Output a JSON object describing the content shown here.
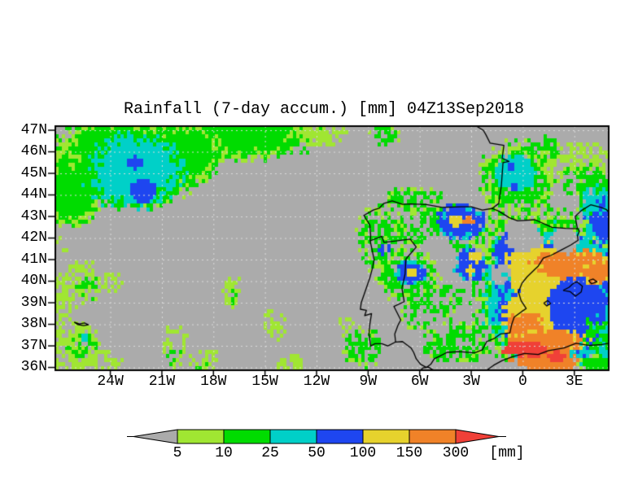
{
  "title": "Rainfall (7-day accum.) [mm] 04Z13Sep2018",
  "chart_data": {
    "type": "heatmap",
    "title": "Rainfall (7-day accum.) [mm] 04Z13Sep2018",
    "variable": "7-day accumulated rainfall",
    "unit": "mm",
    "valid_time": "04Z13Sep2018",
    "projection": {
      "lon_range": [
        -27.2,
        5.0
      ],
      "lat_range": [
        35.87,
        47.19
      ]
    },
    "x_axis": {
      "tick_labels": [
        "24W",
        "21W",
        "18W",
        "15W",
        "12W",
        "9W",
        "6W",
        "3W",
        "0",
        "3E"
      ],
      "tick_lons": [
        -24,
        -21,
        -18,
        -15,
        -12,
        -9,
        -6,
        -3,
        0,
        3
      ]
    },
    "y_axis": {
      "tick_labels": [
        "47N",
        "46N",
        "45N",
        "44N",
        "43N",
        "42N",
        "41N",
        "40N",
        "39N",
        "38N",
        "37N",
        "36N"
      ],
      "tick_lats": [
        47,
        46,
        45,
        44,
        43,
        42,
        41,
        40,
        39,
        38,
        37,
        36
      ]
    },
    "grid": {
      "lat_step_deg": 1,
      "lon_step_deg": 3,
      "style": "dotted",
      "color": "#dcdcdc"
    },
    "frame_color": "#000000",
    "coast_color": "#000000",
    "levels": [
      {
        "range": "<5",
        "color": "#ababab"
      },
      {
        "range": "5-10",
        "color": "#a0e632"
      },
      {
        "range": "10-25",
        "color": "#00dc00"
      },
      {
        "range": "25-50",
        "color": "#00d0c8"
      },
      {
        "range": "50-100",
        "color": "#1e46f0"
      },
      {
        "range": "100-150",
        "color": "#e6d22d"
      },
      {
        "range": "150-300",
        "color": "#f08228"
      },
      {
        "range": ">300",
        "color": "#f04038"
      }
    ],
    "legend": {
      "tick_labels": [
        "5",
        "10",
        "25",
        "50",
        "100",
        "150",
        "300"
      ],
      "unit_label": "[mm]"
    },
    "field_blobs": [
      [
        -23.0,
        45.6,
        4.6,
        2.1,
        2,
        0.25,
        1,
        1
      ],
      [
        -26.3,
        44.1,
        2.0,
        1.6,
        2,
        0.3,
        1,
        1
      ],
      [
        -16.5,
        46.9,
        4.6,
        1.25,
        2,
        0.35,
        1,
        1
      ],
      [
        -20.0,
        45.9,
        2.6,
        1.4,
        2,
        0.25,
        1,
        1
      ],
      [
        -11.6,
        46.95,
        1.5,
        0.65,
        1,
        0.4,
        0.7,
        -1
      ],
      [
        -8.0,
        46.75,
        0.9,
        0.45,
        2,
        0.4,
        0.6,
        1
      ],
      [
        -22.6,
        45.1,
        2.9,
        1.8,
        3,
        0.25,
        1,
        2
      ],
      [
        -22.5,
        45.5,
        0.5,
        0.3,
        4,
        0.3,
        1,
        -1
      ],
      [
        -22.1,
        44.2,
        0.8,
        0.55,
        4,
        0.3,
        1,
        -1
      ],
      [
        -25.8,
        40.0,
        1.5,
        0.9,
        1,
        0.4,
        0.6,
        -1
      ],
      [
        -25.3,
        39.7,
        0.7,
        0.5,
        2,
        0.4,
        0.55,
        -1
      ],
      [
        -26.8,
        38.8,
        0.8,
        0.6,
        1,
        0.4,
        0.6,
        -1
      ],
      [
        -23.9,
        40.0,
        0.6,
        0.5,
        1,
        0.4,
        0.5,
        -1
      ],
      [
        -26.2,
        36.9,
        1.6,
        1.2,
        1,
        0.4,
        0.6,
        -1
      ],
      [
        -25.7,
        37.0,
        0.8,
        0.6,
        2,
        0.4,
        0.5,
        -1
      ],
      [
        -25.5,
        37.4,
        0.25,
        0.2,
        3,
        0.3,
        1,
        -1
      ],
      [
        -24.4,
        36.2,
        1.1,
        0.55,
        1,
        0.4,
        0.55,
        -1
      ],
      [
        -20.2,
        37.2,
        0.65,
        1.1,
        1,
        0.4,
        0.6,
        -1
      ],
      [
        -20.3,
        36.6,
        0.45,
        0.5,
        2,
        0.4,
        0.5,
        -1
      ],
      [
        -18.5,
        36.2,
        1.0,
        0.55,
        1,
        0.4,
        0.55,
        -1
      ],
      [
        -18.8,
        36.1,
        0.4,
        0.3,
        2,
        0.35,
        0.7,
        -1
      ],
      [
        -16.9,
        39.5,
        0.55,
        0.7,
        1,
        0.4,
        0.6,
        -1
      ],
      [
        -16.8,
        39.3,
        0.3,
        0.35,
        2,
        0.4,
        0.6,
        -1
      ],
      [
        -14.4,
        38.0,
        0.75,
        0.7,
        1,
        0.4,
        0.55,
        -1
      ],
      [
        -27.0,
        41.7,
        0.55,
        0.45,
        1,
        0.4,
        0.5,
        -1
      ],
      [
        -13.5,
        36.1,
        0.8,
        0.5,
        1,
        0.4,
        0.5,
        -1
      ],
      [
        -9.3,
        36.9,
        1.1,
        0.9,
        2,
        0.35,
        0.55,
        1
      ],
      [
        -10.3,
        37.9,
        0.5,
        0.4,
        1,
        0.4,
        0.5,
        -1
      ],
      [
        -0.3,
        44.7,
        2.2,
        1.7,
        2,
        0.3,
        0.85,
        1
      ],
      [
        -0.4,
        45.0,
        1.15,
        0.85,
        3,
        0.3,
        1,
        -1
      ],
      [
        -0.75,
        45.3,
        0.22,
        0.18,
        4,
        0.3,
        1,
        -1
      ],
      [
        -0.5,
        44.35,
        0.2,
        0.16,
        4,
        0.3,
        1,
        -1
      ],
      [
        2.9,
        45.7,
        2.2,
        0.8,
        1,
        0.45,
        0.55,
        -1
      ],
      [
        3.6,
        44.7,
        1.6,
        0.8,
        2,
        0.4,
        0.5,
        1
      ],
      [
        1.3,
        46.1,
        1.0,
        0.6,
        2,
        0.45,
        0.5,
        -1
      ],
      [
        -6.3,
        43.8,
        1.7,
        0.55,
        2,
        0.35,
        0.7,
        1
      ],
      [
        4.2,
        44.3,
        1.3,
        0.8,
        2,
        0.4,
        0.55,
        1
      ],
      [
        -8.2,
        42.0,
        1.4,
        1.5,
        2,
        0.35,
        0.6,
        1
      ],
      [
        -8.0,
        41.4,
        0.4,
        0.3,
        4,
        0.3,
        0.8,
        -1
      ],
      [
        -4.5,
        42.4,
        3.2,
        1.1,
        2,
        0.35,
        0.6,
        1
      ],
      [
        -6.6,
        40.3,
        1.9,
        1.2,
        2,
        0.35,
        0.7,
        1
      ],
      [
        -6.5,
        40.4,
        0.9,
        0.55,
        4,
        0.25,
        1,
        3
      ],
      [
        -6.5,
        40.4,
        0.3,
        0.2,
        5,
        0.3,
        1,
        -1
      ],
      [
        -5.6,
        38.6,
        1.5,
        1.0,
        2,
        0.4,
        0.45,
        1
      ],
      [
        -4.3,
        39.2,
        0.9,
        0.6,
        2,
        0.4,
        0.45,
        -1
      ],
      [
        -3.6,
        37.2,
        2.0,
        1.0,
        2,
        0.4,
        0.55,
        1
      ],
      [
        -4.9,
        36.9,
        1.0,
        0.5,
        2,
        0.4,
        0.5,
        -1
      ],
      [
        1.7,
        39.5,
        4.4,
        3.6,
        2,
        0.3,
        1,
        1
      ],
      [
        2.0,
        39.3,
        4.1,
        3.1,
        3,
        0.3,
        1,
        -1
      ],
      [
        2.1,
        39.2,
        3.7,
        2.8,
        4,
        0.25,
        1,
        3
      ],
      [
        4.7,
        42.9,
        1.0,
        1.2,
        4,
        0.3,
        1,
        3
      ],
      [
        4.4,
        43.7,
        1.1,
        0.8,
        3,
        0.35,
        0.8,
        2
      ],
      [
        -0.6,
        41.3,
        1.1,
        1.1,
        4,
        0.3,
        0.9,
        3
      ],
      [
        -3.1,
        40.8,
        1.0,
        0.75,
        4,
        0.3,
        1,
        3
      ],
      [
        -2.7,
        41.15,
        0.35,
        0.25,
        5,
        0.3,
        1,
        -1
      ],
      [
        -3.0,
        40.5,
        0.3,
        0.2,
        5,
        0.3,
        1,
        -1
      ],
      [
        -3.6,
        42.75,
        1.35,
        0.85,
        4,
        0.3,
        1,
        3
      ],
      [
        -3.85,
        42.8,
        0.5,
        0.3,
        5,
        0.3,
        1,
        -1
      ],
      [
        -3.1,
        42.8,
        0.3,
        0.25,
        6,
        0.3,
        1,
        -1
      ],
      [
        0.9,
        40.7,
        2.0,
        1.05,
        5,
        0.3,
        1,
        -1
      ],
      [
        2.9,
        40.8,
        2.5,
        0.7,
        6,
        0.3,
        1,
        5
      ],
      [
        4.4,
        40.4,
        0.9,
        0.6,
        6,
        0.3,
        1,
        5
      ],
      [
        0.65,
        39.6,
        0.9,
        0.6,
        5,
        0.35,
        1,
        -1
      ],
      [
        -0.35,
        39.85,
        0.35,
        0.3,
        5,
        0.3,
        1,
        -1
      ],
      [
        0.3,
        38.3,
        1.45,
        1.15,
        5,
        0.3,
        1,
        -1
      ],
      [
        0.15,
        37.8,
        1.05,
        0.75,
        6,
        0.3,
        1,
        -1
      ],
      [
        1.3,
        37.2,
        2.4,
        0.6,
        6,
        0.35,
        1,
        5
      ],
      [
        1.3,
        36.3,
        1.8,
        0.55,
        6,
        0.35,
        1,
        -1
      ],
      [
        0.2,
        36.85,
        1.35,
        0.35,
        7,
        0.3,
        1,
        -1
      ],
      [
        2.0,
        36.5,
        0.5,
        0.25,
        7,
        0.35,
        1,
        -1
      ],
      [
        4.3,
        36.15,
        0.9,
        0.5,
        2,
        0.35,
        1,
        1
      ],
      [
        4.85,
        36.85,
        0.5,
        0.4,
        3,
        0.35,
        1,
        -1
      ],
      [
        4.6,
        37.6,
        1.0,
        0.8,
        2,
        0.35,
        0.6,
        -1
      ],
      [
        0.1,
        42.0,
        1.15,
        0.65,
        0,
        0.3,
        1,
        -1
      ],
      [
        2.5,
        41.9,
        0.85,
        0.6,
        0,
        0.3,
        1,
        -1
      ],
      [
        -4.4,
        40.8,
        0.6,
        0.5,
        0,
        0.35,
        1,
        -1
      ],
      [
        -1.3,
        40.3,
        0.6,
        0.45,
        0,
        0.35,
        0.9,
        -1
      ],
      [
        -5.0,
        41.6,
        1.0,
        0.6,
        0,
        0.35,
        0.8,
        -1
      ]
    ],
    "coastlines": [
      [
        [
          3.2,
          42.43
        ],
        [
          2.5,
          42.45
        ],
        [
          1.7,
          42.5
        ],
        [
          0.7,
          42.85
        ],
        [
          -0.3,
          42.8
        ],
        [
          -0.8,
          42.95
        ],
        [
          -1.4,
          43.25
        ],
        [
          -1.79,
          43.37
        ],
        [
          -2.35,
          43.3
        ],
        [
          -3.0,
          43.45
        ],
        [
          -3.6,
          43.45
        ],
        [
          -4.7,
          43.42
        ],
        [
          -5.6,
          43.55
        ],
        [
          -6.5,
          43.58
        ],
        [
          -7.0,
          43.56
        ],
        [
          -7.6,
          43.72
        ],
        [
          -8.1,
          43.6
        ],
        [
          -8.35,
          43.38
        ],
        [
          -8.7,
          43.3
        ],
        [
          -9.25,
          43.05
        ],
        [
          -8.9,
          42.6
        ],
        [
          -8.85,
          42.1
        ],
        [
          -8.88,
          41.87
        ],
        [
          -8.65,
          41.0
        ],
        [
          -8.75,
          40.6
        ],
        [
          -8.9,
          40.15
        ],
        [
          -9.4,
          39.0
        ],
        [
          -9.45,
          38.7
        ],
        [
          -9.1,
          38.65
        ],
        [
          -9.2,
          38.4
        ],
        [
          -8.8,
          38.5
        ],
        [
          -8.9,
          38.0
        ],
        [
          -8.95,
          37.55
        ],
        [
          -8.85,
          37.0
        ],
        [
          -8.6,
          37.1
        ],
        [
          -8.2,
          37.1
        ],
        [
          -7.85,
          37.0
        ],
        [
          -7.4,
          37.18
        ],
        [
          -7.0,
          37.2
        ],
        [
          -6.5,
          36.9
        ],
        [
          -6.35,
          36.7
        ],
        [
          -6.2,
          36.4
        ],
        [
          -5.95,
          36.15
        ],
        [
          -5.6,
          36.0
        ],
        [
          -5.35,
          36.15
        ],
        [
          -5.15,
          36.4
        ],
        [
          -4.9,
          36.5
        ],
        [
          -4.4,
          36.7
        ],
        [
          -3.7,
          36.73
        ],
        [
          -2.8,
          36.68
        ],
        [
          -2.35,
          36.82
        ],
        [
          -2.1,
          37.2
        ],
        [
          -1.65,
          37.35
        ],
        [
          -1.3,
          37.55
        ],
        [
          -0.75,
          37.6
        ],
        [
          -0.65,
          37.98
        ],
        [
          -0.5,
          38.33
        ],
        [
          -0.05,
          38.6
        ],
        [
          0.2,
          38.73
        ],
        [
          -0.1,
          39.1
        ],
        [
          -0.25,
          39.5
        ],
        [
          -0.05,
          39.9
        ],
        [
          0.25,
          40.2
        ],
        [
          0.7,
          40.55
        ],
        [
          0.88,
          40.68
        ],
        [
          1.2,
          41.07
        ],
        [
          1.65,
          41.2
        ],
        [
          2.25,
          41.45
        ],
        [
          2.8,
          41.68
        ],
        [
          3.22,
          41.9
        ],
        [
          3.18,
          42.12
        ],
        [
          3.3,
          42.32
        ],
        [
          3.2,
          42.43
        ]
      ],
      [
        [
          -8.88,
          41.87
        ],
        [
          -8.2,
          42.08
        ],
        [
          -8.08,
          41.8
        ],
        [
          -7.2,
          41.88
        ],
        [
          -6.55,
          41.95
        ],
        [
          -6.2,
          41.58
        ],
        [
          -6.8,
          41.03
        ],
        [
          -6.85,
          40.33
        ],
        [
          -7.03,
          39.68
        ],
        [
          -6.9,
          39.05
        ],
        [
          -7.5,
          38.83
        ],
        [
          -7.1,
          38.2
        ],
        [
          -7.25,
          37.98
        ],
        [
          -7.45,
          37.55
        ],
        [
          -7.4,
          37.18
        ]
      ],
      [
        [
          -1.79,
          43.37
        ],
        [
          -1.4,
          43.6
        ],
        [
          -1.25,
          44.4
        ],
        [
          -1.15,
          45.5
        ],
        [
          -0.8,
          45.55
        ],
        [
          -1.2,
          45.7
        ],
        [
          -1.1,
          46.3
        ],
        [
          -1.9,
          46.4
        ],
        [
          -2.15,
          46.8
        ],
        [
          -2.3,
          47.0
        ],
        [
          -2.7,
          47.19
        ]
      ],
      [
        [
          5.0,
          43.2
        ],
        [
          4.85,
          43.33
        ],
        [
          4.55,
          43.42
        ],
        [
          3.95,
          43.54
        ],
        [
          3.4,
          43.27
        ],
        [
          3.05,
          43.0
        ],
        [
          3.18,
          42.43
        ]
      ],
      [
        [
          -5.95,
          35.87
        ],
        [
          -5.8,
          35.98
        ],
        [
          -5.5,
          36.02
        ],
        [
          -5.3,
          35.92
        ],
        [
          -5.15,
          35.87
        ]
      ],
      [
        [
          -2.1,
          35.87
        ],
        [
          -1.7,
          36.1
        ],
        [
          -1.2,
          36.32
        ],
        [
          -0.6,
          36.5
        ],
        [
          0.1,
          36.65
        ],
        [
          0.9,
          36.6
        ],
        [
          1.5,
          36.78
        ],
        [
          2.4,
          36.9
        ],
        [
          3.1,
          37.12
        ],
        [
          3.9,
          37.02
        ],
        [
          4.6,
          37.06
        ],
        [
          5.0,
          37.12
        ]
      ],
      [
        [
          2.35,
          39.57
        ],
        [
          2.7,
          39.72
        ],
        [
          2.9,
          39.87
        ],
        [
          3.15,
          39.97
        ],
        [
          3.47,
          39.77
        ],
        [
          3.4,
          39.5
        ],
        [
          3.07,
          39.3
        ],
        [
          2.75,
          39.52
        ],
        [
          2.35,
          39.57
        ]
      ],
      [
        [
          3.83,
          40.03
        ],
        [
          4.1,
          40.1
        ],
        [
          4.32,
          39.97
        ],
        [
          4.0,
          39.88
        ],
        [
          3.83,
          40.03
        ]
      ],
      [
        [
          1.22,
          38.98
        ],
        [
          1.45,
          39.1
        ],
        [
          1.62,
          38.97
        ],
        [
          1.4,
          38.85
        ],
        [
          1.22,
          38.98
        ]
      ],
      [
        [
          -26.1,
          38.1
        ],
        [
          -25.8,
          38.02
        ],
        [
          -25.5,
          38.06
        ],
        [
          -25.28,
          37.98
        ],
        [
          -25.55,
          37.94
        ],
        [
          -25.9,
          37.99
        ],
        [
          -26.1,
          38.1
        ]
      ]
    ]
  }
}
